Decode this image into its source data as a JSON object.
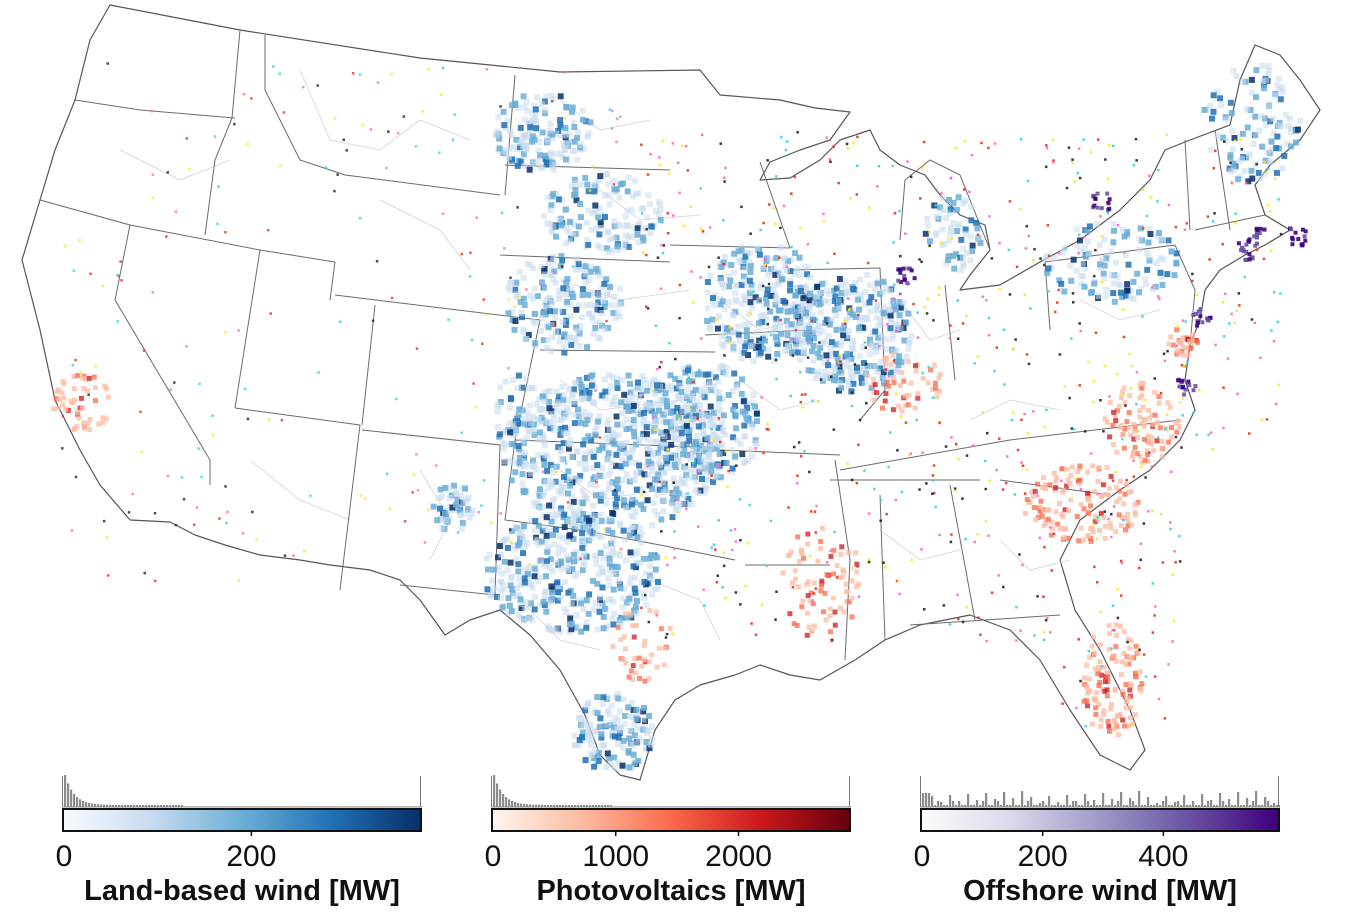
{
  "legends": [
    {
      "title": "Land-based wind [MW]",
      "tick_labels": [
        "0",
        "200"
      ],
      "ticks": [
        0,
        200
      ],
      "range": [
        0,
        380
      ],
      "colors": [
        "#f7fbff",
        "#c6dbef",
        "#6baed6",
        "#2171b5",
        "#08306b"
      ]
    },
    {
      "title": "Photovoltaics [MW]",
      "tick_labels": [
        "0",
        "1000",
        "2000"
      ],
      "ticks": [
        0,
        1000,
        2000
      ],
      "range": [
        0,
        2900
      ],
      "colors": [
        "#fff5f0",
        "#fcbba1",
        "#fb6a4a",
        "#cb181d",
        "#67000d"
      ]
    },
    {
      "title": "Offshore wind [MW]",
      "tick_labels": [
        "0",
        "200",
        "400"
      ],
      "ticks": [
        0,
        200,
        400
      ],
      "range": [
        0,
        590
      ],
      "colors": [
        "#fcfbfd",
        "#dadaeb",
        "#9e9ac8",
        "#6a51a3",
        "#3f007d"
      ]
    }
  ],
  "colors": {
    "state_border": "#555555",
    "region_border": "#d2d2d2",
    "histogram": "#8c8c8c"
  }
}
